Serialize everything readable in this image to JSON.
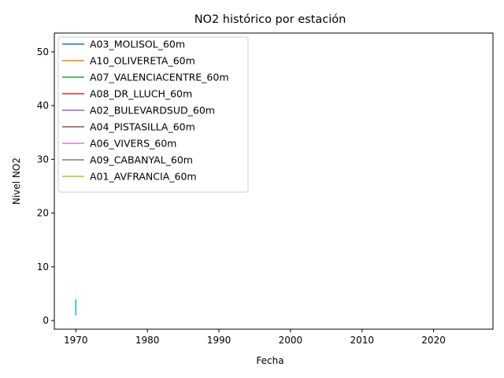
{
  "chart_data": {
    "type": "line",
    "title": "NO2 histórico por estación",
    "xlabel": "Fecha",
    "ylabel": "Nivel NO2",
    "xlim": [
      1967,
      2028.3
    ],
    "ylim": [
      -1.6,
      53.5
    ],
    "xticks": [
      1970,
      1980,
      1990,
      2000,
      2010,
      2020
    ],
    "yticks": [
      0,
      10,
      20,
      30,
      40,
      50
    ],
    "grid": false,
    "legend_position": "top-left",
    "legend": [
      {
        "name": "A03_MOLISOL_60m",
        "color": "#1f77b4"
      },
      {
        "name": "A10_OLIVERETA_60m",
        "color": "#ff7f0e"
      },
      {
        "name": "A07_VALENCIACENTRE_60m",
        "color": "#2ca02c"
      },
      {
        "name": "A08_DR_LLUCH_60m",
        "color": "#d62728"
      },
      {
        "name": "A02_BULEVARDSUD_60m",
        "color": "#9467bd"
      },
      {
        "name": "A04_PISTASILLA_60m",
        "color": "#8c564b"
      },
      {
        "name": "A06_VIVERS_60m",
        "color": "#e377c2"
      },
      {
        "name": "A09_CABANYAL_60m",
        "color": "#7f7f7f"
      },
      {
        "name": "A01_AVFRANCIA_60m",
        "color": "#bcbd22"
      }
    ],
    "series": [
      {
        "color": "#17becf",
        "points": [
          [
            1970,
            1.0
          ],
          [
            1970,
            4.0
          ]
        ]
      }
    ]
  }
}
